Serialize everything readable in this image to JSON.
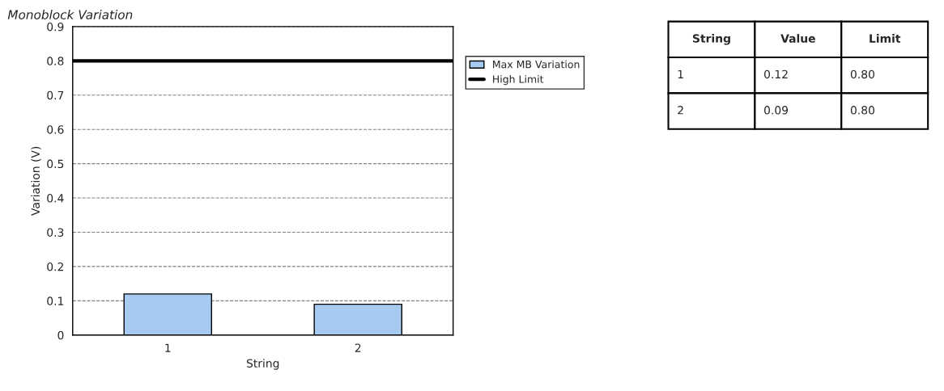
{
  "chart_data": {
    "type": "bar",
    "title": "Monoblock Variation",
    "xlabel": "String",
    "ylabel": "Variation (V)",
    "categories": [
      "1",
      "2"
    ],
    "series": [
      {
        "name": "Max MB Variation",
        "color": "#a6caf0",
        "values": [
          0.12,
          0.09
        ]
      }
    ],
    "ylim": [
      0,
      0.9
    ],
    "yticks": [
      0,
      0.1,
      0.2,
      0.3,
      0.4,
      0.5,
      0.6,
      0.7,
      0.8,
      0.9
    ],
    "ref_lines": [
      {
        "axis": "y",
        "value": 0.8,
        "label": "High Limit",
        "color": "#000000",
        "line_style": "solid"
      }
    ],
    "annotations": [
      "String",
      "Value",
      "Limit",
      "0.12",
      "0.80",
      "0.09",
      "0.80"
    ],
    "grid": "y",
    "legend": "right"
  }
}
